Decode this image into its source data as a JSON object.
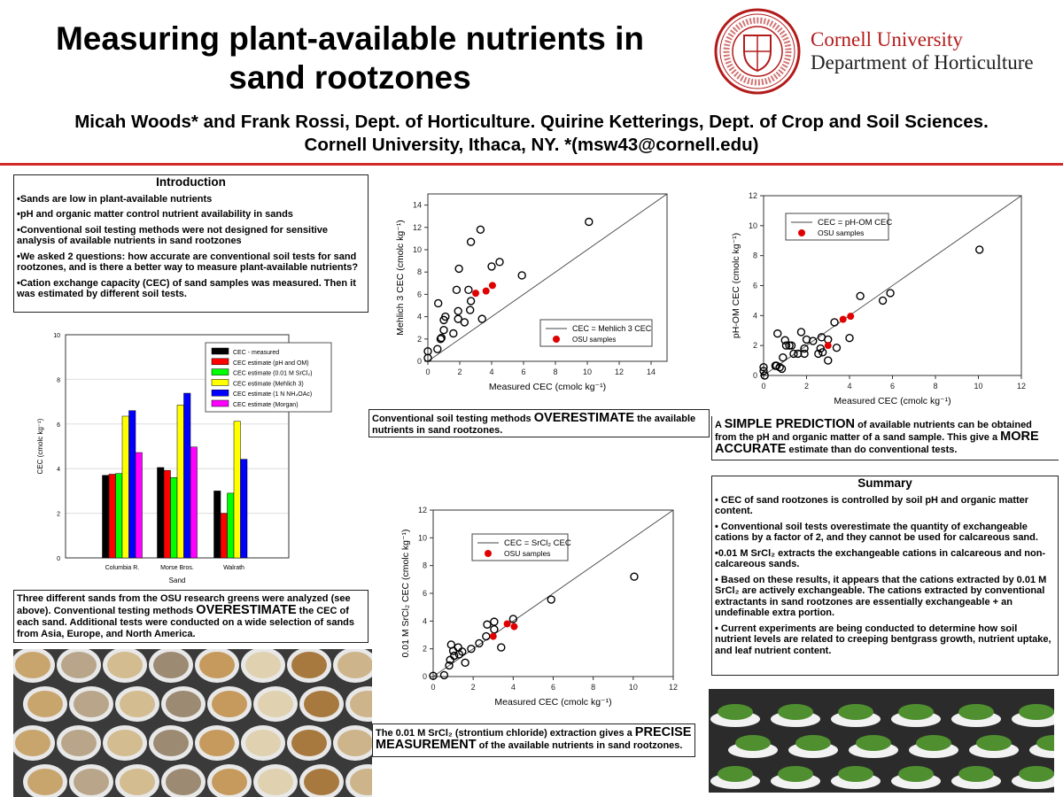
{
  "header": {
    "title": "Measuring plant-available nutrients in sand rootzones",
    "authors_line1": "Micah Woods* and Frank Rossi, Dept. of Horticulture. Quirine Ketterings, Dept. of Crop and Soil Sciences.",
    "authors_line2": "Cornell University, Ithaca, NY. *(msw43@cornell.edu)",
    "university": "Cornell University",
    "department": "Department of Horticulture",
    "seal_text": "CORNELL UNIVERSITY FOUNDED A.D. 1865"
  },
  "colors": {
    "accent_red": "#d42a2a",
    "cornell_red": "#b31b1b",
    "osu_red": "#e00000"
  },
  "introduction": {
    "heading": "Introduction",
    "items": [
      "•Sands are low in plant-available nutrients",
      "•pH and organic matter control nutrient availability in sands",
      "•Conventional soil testing methods were not designed for sensitive analysis of available nutrients in sand rootzones",
      "•We asked 2 questions: how accurate are conventional soil tests for sand rootzones, and is there a better way to measure plant-available nutrients?",
      "•Cation exchange capacity (CEC) of sand samples was measured. Then it was estimated by different soil tests."
    ]
  },
  "captions": {
    "bar": [
      "Three different sands from the OSU research greens were analyzed (see above). Conventional testing methods ",
      "OVERESTIMATE",
      " the CEC of each sand. Additional tests were conducted on a wide selection of sands from Asia, Europe, and North America."
    ],
    "mehlich": [
      "Conventional soil testing methods ",
      "OVERESTIMATE",
      " the available nutrients in sand rootzones."
    ],
    "phom": [
      "A ",
      "SIMPLE PREDICTION",
      " of available nutrients can be obtained from the pH and organic matter of a sand sample. This give a ",
      "MORE ACCURATE",
      " estimate than do conventional tests."
    ],
    "srcl2": [
      "The 0.01 M SrCl₂ (strontium chloride) extraction gives a ",
      "PRECISE MEASUREMENT",
      " of the available nutrients in sand rootzones."
    ]
  },
  "summary": {
    "heading": "Summary",
    "items": [
      "• CEC of sand rootzones is controlled by soil pH and organic matter content.",
      "• Conventional soil tests overestimate the quantity of exchangeable cations by a factor of 2, and they cannot be used for calcareous sand.",
      "•0.01 M SrCl₂ extracts the exchangeable cations in calcareous and non-calcareous sands.",
      "• Based on these results, it appears that the cations extracted by 0.01 M SrCl₂ are actively exchangeable. The cations extracted by conventional extractants in sand rootzones are essentially exchangeable + an undefinable extra portion.",
      "• Current experiments are being conducted to determine how soil nutrient levels are related to creeping bentgrass growth, nutrient uptake, and leaf nutrient content."
    ]
  },
  "chart_data": [
    {
      "type": "bar",
      "xlabel": "Sand",
      "ylabel": "CEC (cmolc kg⁻¹)",
      "ylim": [
        0,
        10
      ],
      "yticks": [
        0,
        2,
        4,
        6,
        8,
        10
      ],
      "grid": true,
      "legend": "top-right",
      "categories": [
        "Columbia R.",
        "Morse Bros.",
        "Walrath"
      ],
      "series": [
        {
          "name": "CEC - measured",
          "color": "#000000",
          "values": [
            3.7,
            4.05,
            3.0
          ]
        },
        {
          "name": "CEC estimate (pH and OM)",
          "color": "#ff0000",
          "values": [
            3.75,
            3.92,
            2.0
          ]
        },
        {
          "name": "CEC estimate (0.01 M SrCl₂)",
          "color": "#00ff00",
          "values": [
            3.78,
            3.6,
            2.9
          ]
        },
        {
          "name": "CEC estimate (Mehlich 3)",
          "color": "#ffff00",
          "values": [
            6.35,
            6.85,
            6.12
          ]
        },
        {
          "name": "CEC estimate (1 N NH₄OAc)",
          "color": "#0000ff",
          "values": [
            6.6,
            7.38,
            4.42
          ]
        },
        {
          "name": "CEC estimate (Morgan)",
          "color": "#ff00ff",
          "values": [
            4.72,
            4.97,
            null
          ]
        }
      ]
    },
    {
      "type": "scatter",
      "xlabel": "Measured CEC (cmolc kg⁻¹)",
      "ylabel": "Mehlich 3 CEC (cmolc kg⁻¹)",
      "xlim": [
        0,
        15
      ],
      "ylim": [
        0,
        15
      ],
      "xticks": [
        0,
        2,
        4,
        6,
        8,
        10,
        12,
        14
      ],
      "yticks": [
        0,
        2,
        4,
        6,
        8,
        10,
        12,
        14
      ],
      "legend": "bottom-right",
      "line_label": "CEC = Mehlich 3 CEC",
      "highlight_label": "OSU samples",
      "points": [
        [
          0,
          0.9
        ],
        [
          0,
          0.3
        ],
        [
          0.6,
          1.1
        ],
        [
          0.8,
          2.0
        ],
        [
          0.85,
          2.1
        ],
        [
          1.0,
          2.8
        ],
        [
          1.0,
          3.7
        ],
        [
          1.1,
          4.0
        ],
        [
          0.65,
          5.2
        ],
        [
          1.6,
          2.5
        ],
        [
          1.9,
          3.8
        ],
        [
          1.9,
          4.5
        ],
        [
          2.3,
          3.5
        ],
        [
          2.65,
          4.6
        ],
        [
          2.7,
          5.4
        ],
        [
          1.8,
          6.4
        ],
        [
          2.55,
          6.4
        ],
        [
          1.95,
          8.3
        ],
        [
          2.7,
          10.7
        ],
        [
          3.3,
          11.8
        ],
        [
          3.4,
          3.8
        ],
        [
          4.0,
          8.5
        ],
        [
          4.5,
          8.9
        ],
        [
          5.9,
          7.7
        ],
        [
          10.1,
          12.5
        ]
      ],
      "highlight": [
        [
          3.0,
          6.1
        ],
        [
          3.65,
          6.3
        ],
        [
          4.05,
          6.8
        ]
      ]
    },
    {
      "type": "scatter",
      "xlabel": "Measured CEC (cmolc kg⁻¹)",
      "ylabel": "pH-OM CEC (cmolc kg⁻¹)",
      "xlim": [
        0,
        12
      ],
      "ylim": [
        0,
        12
      ],
      "xticks": [
        0,
        2,
        4,
        6,
        8,
        10,
        12
      ],
      "yticks": [
        0,
        2,
        4,
        6,
        8,
        10,
        12
      ],
      "legend": "top-left",
      "line_label": "CEC = pH-OM CEC",
      "highlight_label": "OSU samples",
      "points": [
        [
          0,
          0.55
        ],
        [
          0,
          0.3
        ],
        [
          0.05,
          0
        ],
        [
          0.55,
          0.65
        ],
        [
          0.6,
          0.65
        ],
        [
          0.75,
          0.55
        ],
        [
          0.85,
          0.45
        ],
        [
          0.65,
          2.8
        ],
        [
          0.9,
          1.2
        ],
        [
          1.0,
          2.35
        ],
        [
          1.05,
          2.0
        ],
        [
          1.2,
          2.0
        ],
        [
          1.3,
          2.0
        ],
        [
          1.4,
          1.45
        ],
        [
          1.6,
          1.45
        ],
        [
          1.75,
          2.9
        ],
        [
          1.9,
          1.8
        ],
        [
          1.9,
          1.45
        ],
        [
          2.0,
          2.4
        ],
        [
          2.3,
          2.3
        ],
        [
          2.55,
          1.45
        ],
        [
          2.65,
          1.8
        ],
        [
          2.7,
          2.55
        ],
        [
          2.75,
          1.55
        ],
        [
          3.0,
          2.4
        ],
        [
          3.0,
          1.0
        ],
        [
          3.3,
          3.55
        ],
        [
          3.4,
          1.85
        ],
        [
          4.0,
          2.5
        ],
        [
          4.5,
          5.3
        ],
        [
          5.55,
          5.0
        ],
        [
          5.9,
          5.5
        ],
        [
          10.05,
          8.4
        ]
      ],
      "highlight": [
        [
          3.0,
          2.0
        ],
        [
          3.7,
          3.75
        ],
        [
          4.05,
          3.95
        ]
      ]
    },
    {
      "type": "scatter",
      "xlabel": "Measured CEC (cmolc kg⁻¹)",
      "ylabel": "0.01 M SrCl₂ CEC (cmolc kg⁻¹)",
      "xlim": [
        0,
        12
      ],
      "ylim": [
        0,
        12
      ],
      "xticks": [
        0,
        2,
        4,
        6,
        8,
        10,
        12
      ],
      "yticks": [
        0,
        2,
        4,
        6,
        8,
        10,
        12
      ],
      "legend": "top-left",
      "line_label": "CEC = SrCl₂ CEC",
      "highlight_label": "OSU samples",
      "points": [
        [
          0,
          0.05
        ],
        [
          0.55,
          0.1
        ],
        [
          0.8,
          0.8
        ],
        [
          0.85,
          1.2
        ],
        [
          0.9,
          2.3
        ],
        [
          1.0,
          1.85
        ],
        [
          1.05,
          1.5
        ],
        [
          1.25,
          2.1
        ],
        [
          1.3,
          1.6
        ],
        [
          1.45,
          1.8
        ],
        [
          1.6,
          1.0
        ],
        [
          1.9,
          2.0
        ],
        [
          2.3,
          2.4
        ],
        [
          2.65,
          2.9
        ],
        [
          2.7,
          3.75
        ],
        [
          3.05,
          3.4
        ],
        [
          3.05,
          3.95
        ],
        [
          3.4,
          2.1
        ],
        [
          4.0,
          4.15
        ],
        [
          5.9,
          5.55
        ],
        [
          10.05,
          7.2
        ]
      ],
      "highlight": [
        [
          3.0,
          2.9
        ],
        [
          3.7,
          3.8
        ],
        [
          4.05,
          3.6
        ]
      ]
    }
  ]
}
